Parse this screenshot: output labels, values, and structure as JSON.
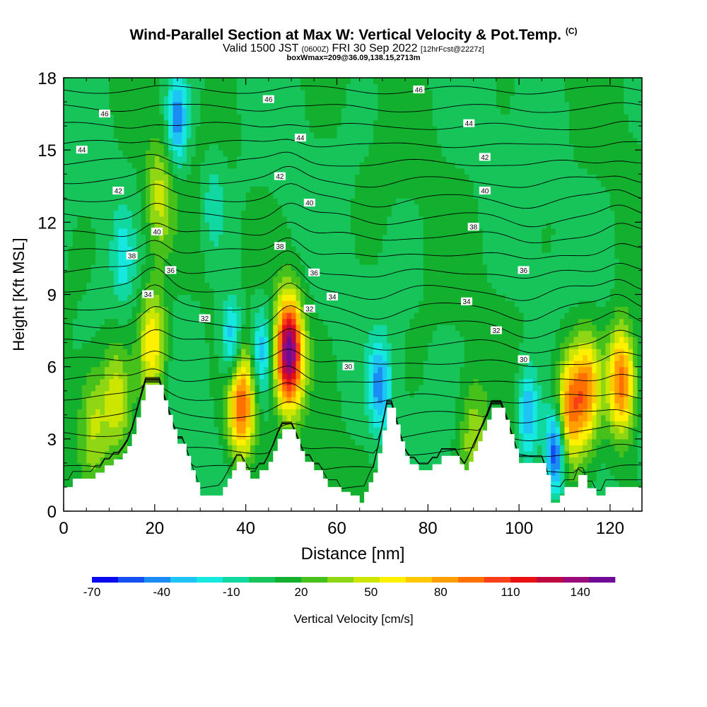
{
  "header": {
    "title": "Wind-Parallel Section at Max W: Vertical Velocity & Pot.Temp.",
    "copyright": "(C)",
    "valid_prefix": "Valid 1500 JST",
    "valid_utc": "(0600Z)",
    "valid_date": "FRI 30 Sep 2022",
    "forecast_info": "[12hrFcst@2227z]",
    "box_info": "boxWmax=209@36.09,138.15,2713m"
  },
  "colors": {
    "background_field": "#10b833",
    "terrain": "#ffffff",
    "contour": "#000000",
    "colorbar": [
      "#0a0aee",
      "#1650f0",
      "#1c8cf5",
      "#1ec4f5",
      "#16e8e0",
      "#10d8a0",
      "#16c45a",
      "#12b02e",
      "#46c01a",
      "#8fd614",
      "#cce600",
      "#fff000",
      "#ffc800",
      "#ff9e00",
      "#ff7000",
      "#f84018",
      "#e81010",
      "#c00840",
      "#9a0a78",
      "#6e0a96"
    ]
  },
  "chart_data": {
    "type": "heatmap",
    "description_series": "vertical velocity shaded with potential temperature contours",
    "xlabel": "Distance [nm]",
    "ylabel": "Height [Kft MSL]",
    "xlim": [
      0,
      127
    ],
    "ylim": [
      0,
      18
    ],
    "x_ticks": [
      0,
      20,
      40,
      60,
      80,
      100,
      120
    ],
    "y_ticks": [
      0,
      3,
      6,
      9,
      12,
      15,
      18
    ],
    "colorbar": {
      "label": "Vertical Velocity [cm/s]",
      "tick_labels": [
        "-70",
        "-40",
        "-10",
        "20",
        "50",
        "80",
        "110",
        "140"
      ],
      "tick_values": [
        -70,
        -40,
        -10,
        20,
        50,
        80,
        110,
        140
      ],
      "range": [
        -70,
        155
      ]
    },
    "terrain_profile": [
      [
        0,
        1
      ],
      [
        2,
        1
      ],
      [
        2,
        1.35
      ],
      [
        7,
        1.35
      ],
      [
        7,
        1.6
      ],
      [
        9,
        1.6
      ],
      [
        9,
        1.9
      ],
      [
        11,
        1.9
      ],
      [
        11,
        2.15
      ],
      [
        13,
        2.15
      ],
      [
        13,
        2.4
      ],
      [
        14,
        2.4
      ],
      [
        14,
        2.7
      ],
      [
        15,
        2.7
      ],
      [
        15,
        3.2
      ],
      [
        16,
        3.2
      ],
      [
        16,
        3.9
      ],
      [
        17,
        3.9
      ],
      [
        17,
        4.6
      ],
      [
        18,
        4.6
      ],
      [
        18,
        5.25
      ],
      [
        22,
        5.25
      ],
      [
        22,
        4.6
      ],
      [
        23,
        4.6
      ],
      [
        23,
        4
      ],
      [
        24,
        4
      ],
      [
        24,
        3.4
      ],
      [
        25,
        3.4
      ],
      [
        25,
        2.8
      ],
      [
        27,
        2.8
      ],
      [
        27,
        2.3
      ],
      [
        28,
        2.3
      ],
      [
        28,
        1.7
      ],
      [
        29,
        1.7
      ],
      [
        29,
        1.2
      ],
      [
        30,
        1.2
      ],
      [
        30,
        0.65
      ],
      [
        35,
        0.65
      ],
      [
        35,
        1
      ],
      [
        36,
        1
      ],
      [
        36,
        1.35
      ],
      [
        37,
        1.35
      ],
      [
        37,
        1.7
      ],
      [
        38,
        1.7
      ],
      [
        38,
        2.05
      ],
      [
        40,
        2.05
      ],
      [
        40,
        1.7
      ],
      [
        41,
        1.7
      ],
      [
        41,
        1.35
      ],
      [
        43,
        1.35
      ],
      [
        43,
        1.7
      ],
      [
        45,
        1.7
      ],
      [
        45,
        2.05
      ],
      [
        46,
        2.05
      ],
      [
        46,
        2.5
      ],
      [
        47,
        2.5
      ],
      [
        47,
        3
      ],
      [
        48,
        3
      ],
      [
        48,
        3.4
      ],
      [
        51,
        3.4
      ],
      [
        51,
        3
      ],
      [
        52,
        3
      ],
      [
        52,
        2.5
      ],
      [
        53,
        2.5
      ],
      [
        53,
        2.05
      ],
      [
        55,
        2.05
      ],
      [
        55,
        1.7
      ],
      [
        57,
        1.7
      ],
      [
        57,
        1.35
      ],
      [
        58,
        1.35
      ],
      [
        58,
        1
      ],
      [
        61,
        1
      ],
      [
        61,
        0.8
      ],
      [
        63,
        0.8
      ],
      [
        63,
        0.65
      ],
      [
        65,
        0.65
      ],
      [
        65,
        0.35
      ],
      [
        66,
        0.35
      ],
      [
        66,
        0.8
      ],
      [
        67,
        0.8
      ],
      [
        67,
        1.2
      ],
      [
        68,
        1.2
      ],
      [
        68,
        1.6
      ],
      [
        69,
        1.6
      ],
      [
        69,
        2.4
      ],
      [
        70,
        2.4
      ],
      [
        70,
        3.35
      ],
      [
        71,
        3.35
      ],
      [
        71,
        4.3
      ],
      [
        73,
        4.3
      ],
      [
        73,
        3.6
      ],
      [
        74,
        3.6
      ],
      [
        74,
        2.9
      ],
      [
        75,
        2.9
      ],
      [
        75,
        2.3
      ],
      [
        76,
        2.3
      ],
      [
        76,
        1.95
      ],
      [
        78,
        1.95
      ],
      [
        78,
        1.7
      ],
      [
        81,
        1.7
      ],
      [
        81,
        1.95
      ],
      [
        83,
        1.95
      ],
      [
        83,
        2.3
      ],
      [
        87,
        2.3
      ],
      [
        87,
        1.95
      ],
      [
        88,
        1.95
      ],
      [
        88,
        1.7
      ],
      [
        89,
        1.7
      ],
      [
        89,
        2.05
      ],
      [
        90,
        2.05
      ],
      [
        90,
        2.5
      ],
      [
        91,
        2.5
      ],
      [
        91,
        2.9
      ],
      [
        92,
        2.9
      ],
      [
        92,
        3.35
      ],
      [
        93,
        3.35
      ],
      [
        93,
        3.8
      ],
      [
        94,
        3.8
      ],
      [
        94,
        4.3
      ],
      [
        97,
        4.3
      ],
      [
        97,
        3.8
      ],
      [
        98,
        3.8
      ],
      [
        98,
        3.2
      ],
      [
        99,
        3.2
      ],
      [
        99,
        2.6
      ],
      [
        100,
        2.6
      ],
      [
        100,
        2
      ],
      [
        106,
        2
      ],
      [
        106,
        1.5
      ],
      [
        107,
        1.5
      ],
      [
        107,
        0.35
      ],
      [
        109,
        0.35
      ],
      [
        109,
        0.65
      ],
      [
        110,
        0.65
      ],
      [
        110,
        1
      ],
      [
        113,
        1
      ],
      [
        113,
        1.5
      ],
      [
        115,
        1.5
      ],
      [
        115,
        0.95
      ],
      [
        117,
        0.95
      ],
      [
        117,
        0.65
      ],
      [
        119,
        0.65
      ],
      [
        119,
        1
      ],
      [
        127,
        1
      ]
    ],
    "theta_contour_labels": [
      {
        "value": "46",
        "x": 9,
        "y": 16.5
      },
      {
        "value": "44",
        "x": 4,
        "y": 15
      },
      {
        "value": "42",
        "x": 12,
        "y": 13.3
      },
      {
        "value": "40",
        "x": 20.5,
        "y": 11.6
      },
      {
        "value": "38",
        "x": 15,
        "y": 10.6
      },
      {
        "value": "36",
        "x": 23.5,
        "y": 10
      },
      {
        "value": "34",
        "x": 18.5,
        "y": 9
      },
      {
        "value": "32",
        "x": 31,
        "y": 8
      },
      {
        "value": "46",
        "x": 45,
        "y": 17.1
      },
      {
        "value": "44",
        "x": 52,
        "y": 15.5
      },
      {
        "value": "42",
        "x": 47.5,
        "y": 13.9
      },
      {
        "value": "40",
        "x": 54,
        "y": 12.8
      },
      {
        "value": "38",
        "x": 47.5,
        "y": 11
      },
      {
        "value": "36",
        "x": 55,
        "y": 9.9
      },
      {
        "value": "34",
        "x": 59,
        "y": 8.9
      },
      {
        "value": "32",
        "x": 54,
        "y": 8.4
      },
      {
        "value": "30",
        "x": 62.5,
        "y": 6
      },
      {
        "value": "46",
        "x": 78,
        "y": 17.5
      },
      {
        "value": "44",
        "x": 89,
        "y": 16.1
      },
      {
        "value": "42",
        "x": 92.5,
        "y": 14.7
      },
      {
        "value": "40",
        "x": 92.5,
        "y": 13.3
      },
      {
        "value": "38",
        "x": 90,
        "y": 11.8
      },
      {
        "value": "36",
        "x": 101,
        "y": 10
      },
      {
        "value": "34",
        "x": 88.5,
        "y": 8.7
      },
      {
        "value": "32",
        "x": 95,
        "y": 7.5
      },
      {
        "value": "30",
        "x": 101,
        "y": 6.3
      }
    ],
    "updraft_cores": [
      {
        "x": 6.5,
        "y": 3.7,
        "peak": 40
      },
      {
        "x": 11.5,
        "y": 4.7,
        "peak": 48
      },
      {
        "x": 19.5,
        "y": 7,
        "peak": 68
      },
      {
        "x": 21,
        "y": 13,
        "peak": 45
      },
      {
        "x": 39,
        "y": 4.5,
        "peak": 100
      },
      {
        "x": 49.5,
        "y": 6.6,
        "peak": 150
      },
      {
        "x": 90,
        "y": 3,
        "peak": 40
      },
      {
        "x": 111,
        "y": 4.3,
        "peak": 85
      },
      {
        "x": 115,
        "y": 5.1,
        "peak": 80
      },
      {
        "x": 122.5,
        "y": 5.4,
        "peak": 100
      }
    ],
    "downdraft_cores": [
      {
        "x": 25,
        "y": 16.3,
        "peak": -45
      },
      {
        "x": 37,
        "y": 7,
        "peak": -45
      },
      {
        "x": 43.5,
        "y": 6.6,
        "peak": -35
      },
      {
        "x": 69.5,
        "y": 5.2,
        "peak": -40
      },
      {
        "x": 102,
        "y": 4,
        "peak": -40
      },
      {
        "x": 108,
        "y": 2.5,
        "peak": -70
      },
      {
        "x": 13,
        "y": 10.5,
        "peak": -15
      },
      {
        "x": 33,
        "y": 12.7,
        "peak": -15
      }
    ]
  }
}
